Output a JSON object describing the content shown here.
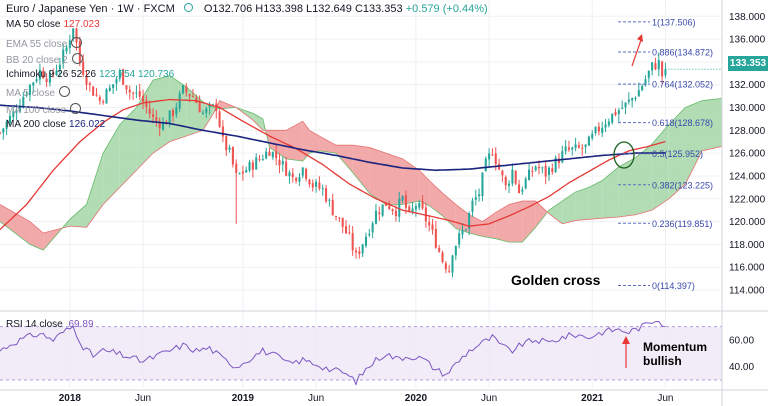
{
  "header": {
    "symbol": "Euro / Japanese Yen · 1W · FXCM",
    "ohlc": "O132.706 H133.398 L132.649 C133.353",
    "change": "+0.579 (+0.44%)"
  },
  "legend": [
    {
      "label": "MA 50 close",
      "value": "127.023",
      "color": "#e53935",
      "dim": false
    },
    {
      "label": "EMA 55 close",
      "value": "",
      "color": "#9598a1",
      "dim": true
    },
    {
      "label": "BB 20 close 2",
      "value": "",
      "color": "#9598a1",
      "dim": true
    },
    {
      "label": "Ichimoku 9 26 52 26",
      "value": "123.754  120.736",
      "color": "#26a69a",
      "dim": false
    },
    {
      "label": "MA 5 close",
      "value": "",
      "color": "#9598a1",
      "dim": true
    },
    {
      "label": "MA 100 close",
      "value": "",
      "color": "#9598a1",
      "dim": true
    },
    {
      "label": "MA 200 close",
      "value": "126.022",
      "color": "#1a237e",
      "dim": false
    }
  ],
  "rsi_legend": {
    "label": "RSI 14 close",
    "value": "69.89"
  },
  "last_price": "133.353",
  "annotations": {
    "golden_cross": "Golden cross",
    "momentum": [
      "Momentum",
      "bullish"
    ]
  },
  "chart_data": {
    "type": "candlestick",
    "price_axis": {
      "ticks": [
        114,
        116,
        118,
        120,
        122,
        124,
        126,
        128,
        130,
        132,
        134,
        136,
        138
      ],
      "labels": [
        "114.000",
        "116.000",
        "118.000",
        "120.000",
        "122.000",
        "124.000",
        "126.000",
        "128.000",
        "130.000",
        "132.000",
        "134.000",
        "136.000",
        "138.000"
      ],
      "ylim": [
        112.6,
        138.9
      ]
    },
    "rsi_axis": {
      "ticks": [
        40,
        60
      ],
      "labels": [
        "40.00",
        "60.00"
      ],
      "ylim": [
        24,
        78
      ],
      "band": [
        30,
        70
      ]
    },
    "x_axis": {
      "labels": [
        "2018",
        "Jun",
        "2019",
        "Jun",
        "2020",
        "Jun",
        "2021",
        "Jun"
      ],
      "label_weeks": [
        0,
        22,
        52,
        74,
        104,
        126,
        157,
        179
      ],
      "bold": [
        true,
        false,
        true,
        false,
        true,
        false,
        true,
        false
      ],
      "week_range": [
        -21,
        196
      ]
    },
    "fib_levels": [
      {
        "label": "1(137.506)",
        "value": 137.506
      },
      {
        "label": "0.886(134.872)",
        "value": 134.872
      },
      {
        "label": "0.764(132.052)",
        "value": 132.052
      },
      {
        "label": "0.618(128.678)",
        "value": 128.678
      },
      {
        "label": "0.5(125.952)",
        "value": 125.952
      },
      {
        "label": "0.382(123.225)",
        "value": 123.225
      },
      {
        "label": "0.236(119.851)",
        "value": 119.851
      },
      {
        "label": "0(114.397)",
        "value": 114.397
      }
    ],
    "price_anchors": [
      [
        -21,
        127.8
      ],
      [
        -17,
        129.5
      ],
      [
        -13,
        131.5
      ],
      [
        -9,
        133.2
      ],
      [
        -6,
        132.5
      ],
      [
        -3,
        134.0
      ],
      [
        -1,
        135.2
      ],
      [
        1,
        137.2
      ],
      [
        3,
        134.0
      ],
      [
        6,
        131.8
      ],
      [
        9,
        130.6
      ],
      [
        12,
        131.6
      ],
      [
        15,
        133.0
      ],
      [
        18,
        131.4
      ],
      [
        21,
        131.0
      ],
      [
        25,
        129.0
      ],
      [
        28,
        128.5
      ],
      [
        31,
        129.6
      ],
      [
        34,
        131.5
      ],
      [
        37,
        131.0
      ],
      [
        40,
        129.5
      ],
      [
        44,
        130.1
      ],
      [
        46,
        127.0
      ],
      [
        48,
        126.0
      ],
      [
        50,
        123.9
      ],
      [
        54,
        124.8
      ],
      [
        57,
        125.5
      ],
      [
        60,
        126.3
      ],
      [
        63,
        125.3
      ],
      [
        67,
        123.8
      ],
      [
        70,
        124.7
      ],
      [
        73,
        123.2
      ],
      [
        76,
        122.8
      ],
      [
        79,
        121.0
      ],
      [
        82,
        119.6
      ],
      [
        84,
        118.5
      ],
      [
        86,
        116.9
      ],
      [
        89,
        118.8
      ],
      [
        92,
        120.8
      ],
      [
        95,
        121.6
      ],
      [
        98,
        121.0
      ],
      [
        100,
        122.0
      ],
      [
        102,
        120.4
      ],
      [
        104,
        121.5
      ],
      [
        106,
        120.8
      ],
      [
        108,
        119.6
      ],
      [
        110,
        118.2
      ],
      [
        112,
        116.6
      ],
      [
        114,
        115.8
      ],
      [
        115,
        117.5
      ],
      [
        117,
        118.6
      ],
      [
        119,
        119.6
      ],
      [
        121,
        121.6
      ],
      [
        123,
        122.5
      ],
      [
        125,
        125.0
      ],
      [
        127,
        126.3
      ],
      [
        129,
        124.6
      ],
      [
        131,
        123.0
      ],
      [
        133,
        124.5
      ],
      [
        135,
        122.6
      ],
      [
        137,
        123.6
      ],
      [
        140,
        124.9
      ],
      [
        143,
        124.2
      ],
      [
        146,
        125.2
      ],
      [
        149,
        126.2
      ],
      [
        152,
        126.3
      ],
      [
        155,
        126.5
      ],
      [
        158,
        127.8
      ],
      [
        161,
        128.8
      ],
      [
        164,
        129.6
      ],
      [
        167,
        130.2
      ],
      [
        169,
        130.8
      ],
      [
        171,
        131.5
      ],
      [
        173,
        132.5
      ],
      [
        175,
        133.6
      ],
      [
        177,
        133.9
      ],
      [
        178,
        132.8
      ],
      [
        179,
        133.353
      ]
    ],
    "ma50_anchors": [
      [
        -21,
        119.3
      ],
      [
        -13,
        121.5
      ],
      [
        -5,
        124.5
      ],
      [
        3,
        127.0
      ],
      [
        10,
        128.7
      ],
      [
        16,
        129.8
      ],
      [
        22,
        130.4
      ],
      [
        30,
        130.7
      ],
      [
        38,
        130.6
      ],
      [
        45,
        130.0
      ],
      [
        52,
        128.8
      ],
      [
        60,
        127.5
      ],
      [
        68,
        126.4
      ],
      [
        76,
        125.0
      ],
      [
        84,
        123.3
      ],
      [
        92,
        122.0
      ],
      [
        100,
        121.0
      ],
      [
        108,
        120.5
      ],
      [
        114,
        120.1
      ],
      [
        120,
        119.6
      ],
      [
        126,
        119.8
      ],
      [
        132,
        120.5
      ],
      [
        138,
        121.3
      ],
      [
        144,
        122.2
      ],
      [
        150,
        123.4
      ],
      [
        156,
        124.4
      ],
      [
        162,
        125.4
      ],
      [
        168,
        126.2
      ],
      [
        174,
        126.6
      ],
      [
        179,
        127.02
      ]
    ],
    "ma200_anchors": [
      [
        -21,
        130.2
      ],
      [
        -10,
        130.0
      ],
      [
        0,
        129.7
      ],
      [
        10,
        129.3
      ],
      [
        20,
        128.9
      ],
      [
        30,
        128.6
      ],
      [
        40,
        128.0
      ],
      [
        50,
        127.5
      ],
      [
        60,
        126.9
      ],
      [
        70,
        126.3
      ],
      [
        80,
        125.8
      ],
      [
        90,
        125.2
      ],
      [
        100,
        124.7
      ],
      [
        110,
        124.5
      ],
      [
        120,
        124.6
      ],
      [
        130,
        124.9
      ],
      [
        140,
        125.2
      ],
      [
        150,
        125.5
      ],
      [
        160,
        125.8
      ],
      [
        170,
        126.0
      ],
      [
        179,
        126.02
      ]
    ],
    "ichimoku_cloud": [
      {
        "w": -21,
        "a": 120.0,
        "b": 121.5
      },
      {
        "w": -12,
        "a": 118.0,
        "b": 120.0
      },
      {
        "w": -8,
        "a": 117.5,
        "b": 119.0
      },
      {
        "w": 0,
        "a": 120.2,
        "b": 119.6
      },
      {
        "w": 5,
        "a": 121.5,
        "b": 119.5
      },
      {
        "w": 10,
        "a": 126.0,
        "b": 121.5
      },
      {
        "w": 15,
        "a": 128.5,
        "b": 123.0
      },
      {
        "w": 20,
        "a": 130.0,
        "b": 124.5
      },
      {
        "w": 25,
        "a": 132.4,
        "b": 126.0
      },
      {
        "w": 30,
        "a": 132.8,
        "b": 127.0
      },
      {
        "w": 35,
        "a": 131.8,
        "b": 127.5
      },
      {
        "w": 40,
        "a": 130.5,
        "b": 128.0
      },
      {
        "w": 43,
        "a": 130.0,
        "b": 129.4
      },
      {
        "w": 45,
        "a": 129.9,
        "b": 130.6
      },
      {
        "w": 50,
        "a": 130.0,
        "b": 130.0
      },
      {
        "w": 55,
        "a": 129.5,
        "b": 128.9
      },
      {
        "w": 58,
        "a": 129.0,
        "b": 128.0
      },
      {
        "w": 60,
        "a": 126.5,
        "b": 128.0
      },
      {
        "w": 65,
        "a": 125.5,
        "b": 128.0
      },
      {
        "w": 70,
        "a": 125.3,
        "b": 128.8
      },
      {
        "w": 72,
        "a": 126.0,
        "b": 128.0
      },
      {
        "w": 75,
        "a": 126.2,
        "b": 127.5
      },
      {
        "w": 80,
        "a": 126.0,
        "b": 126.7
      },
      {
        "w": 85,
        "a": 124.3,
        "b": 126.7
      },
      {
        "w": 90,
        "a": 122.5,
        "b": 126.5
      },
      {
        "w": 95,
        "a": 121.5,
        "b": 126.0
      },
      {
        "w": 100,
        "a": 121.5,
        "b": 125.5
      },
      {
        "w": 105,
        "a": 121.8,
        "b": 124.5
      },
      {
        "w": 108,
        "a": 121.4,
        "b": 123.6
      },
      {
        "w": 112,
        "a": 120.5,
        "b": 122.5
      },
      {
        "w": 116,
        "a": 119.4,
        "b": 121.5
      },
      {
        "w": 120,
        "a": 119.0,
        "b": 120.6
      },
      {
        "w": 124,
        "a": 118.7,
        "b": 120.0
      },
      {
        "w": 128,
        "a": 118.5,
        "b": 120.8
      },
      {
        "w": 132,
        "a": 118.2,
        "b": 121.5
      },
      {
        "w": 136,
        "a": 118.2,
        "b": 121.8
      },
      {
        "w": 140,
        "a": 119.5,
        "b": 121.8
      },
      {
        "w": 144,
        "a": 121.0,
        "b": 120.7
      },
      {
        "w": 148,
        "a": 121.8,
        "b": 119.8
      },
      {
        "w": 152,
        "a": 122.6,
        "b": 120.1
      },
      {
        "w": 156,
        "a": 123.0,
        "b": 120.2
      },
      {
        "w": 160,
        "a": 123.6,
        "b": 120.3
      },
      {
        "w": 165,
        "a": 124.8,
        "b": 120.4
      },
      {
        "w": 170,
        "a": 125.6,
        "b": 120.6
      },
      {
        "w": 175,
        "a": 126.8,
        "b": 121.0
      },
      {
        "w": 180,
        "a": 128.5,
        "b": 122.0
      },
      {
        "w": 185,
        "a": 130.0,
        "b": 123.3
      },
      {
        "w": 190,
        "a": 130.6,
        "b": 126.2
      },
      {
        "w": 196,
        "a": 130.8,
        "b": 126.6
      }
    ],
    "rsi_anchors": [
      [
        -21,
        52
      ],
      [
        -17,
        58
      ],
      [
        -13,
        62
      ],
      [
        -9,
        65
      ],
      [
        -5,
        60
      ],
      [
        -2,
        66
      ],
      [
        1,
        70
      ],
      [
        4,
        55
      ],
      [
        7,
        48
      ],
      [
        10,
        52
      ],
      [
        14,
        50
      ],
      [
        18,
        47
      ],
      [
        22,
        44
      ],
      [
        26,
        48
      ],
      [
        30,
        52
      ],
      [
        34,
        56
      ],
      [
        38,
        52
      ],
      [
        42,
        54
      ],
      [
        46,
        46
      ],
      [
        50,
        40
      ],
      [
        54,
        46
      ],
      [
        58,
        52
      ],
      [
        62,
        48
      ],
      [
        66,
        42
      ],
      [
        70,
        45
      ],
      [
        74,
        42
      ],
      [
        78,
        38
      ],
      [
        82,
        36
      ],
      [
        86,
        29
      ],
      [
        89,
        38
      ],
      [
        92,
        45
      ],
      [
        95,
        50
      ],
      [
        98,
        46
      ],
      [
        102,
        48
      ],
      [
        106,
        46
      ],
      [
        110,
        38
      ],
      [
        113,
        34
      ],
      [
        116,
        42
      ],
      [
        120,
        52
      ],
      [
        124,
        58
      ],
      [
        127,
        62
      ],
      [
        130,
        55
      ],
      [
        133,
        52
      ],
      [
        136,
        57
      ],
      [
        140,
        60
      ],
      [
        144,
        58
      ],
      [
        148,
        62
      ],
      [
        152,
        64
      ],
      [
        156,
        62
      ],
      [
        160,
        66
      ],
      [
        164,
        68
      ],
      [
        168,
        66
      ],
      [
        172,
        70
      ],
      [
        175,
        74
      ],
      [
        177,
        76
      ],
      [
        179,
        69.89
      ]
    ]
  }
}
